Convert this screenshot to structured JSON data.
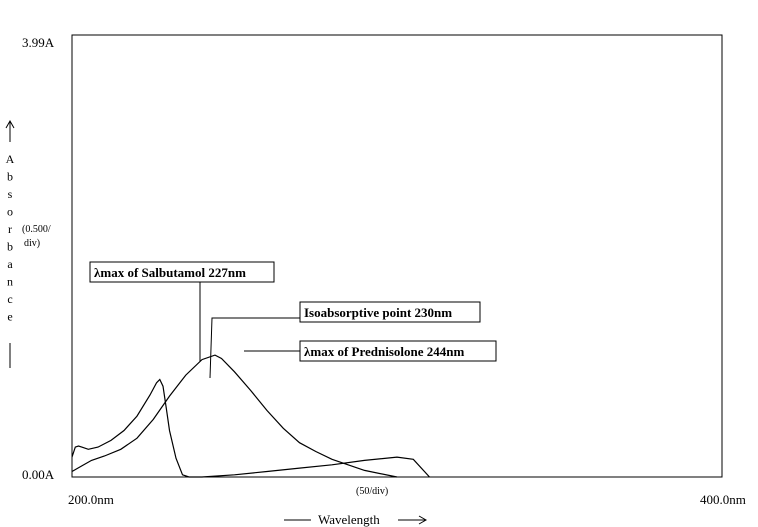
{
  "chart_data": {
    "type": "line",
    "xlim": [
      200.0,
      400.0
    ],
    "ylim": [
      0.0,
      3.99
    ],
    "x_tick_labels": [
      "200.0nm",
      "400.0nm"
    ],
    "y_tick_labels": [
      "0.00A",
      "3.99A"
    ],
    "x_scale_label": "(50/div)",
    "y_scale_label": [
      "(0.500/",
      "div)"
    ],
    "xlabel": "Wavelength",
    "ylabel": "Absorbance",
    "grid": false,
    "legend": "none",
    "series": [
      {
        "x": [
          200,
          201,
          202,
          203,
          205,
          208,
          212,
          216,
          220,
          224,
          226,
          227,
          228,
          229,
          230,
          232,
          234,
          236,
          240,
          250,
          260,
          270,
          280,
          290,
          300,
          305,
          310
        ],
        "y": [
          0.18,
          0.27,
          0.28,
          0.27,
          0.25,
          0.27,
          0.33,
          0.42,
          0.55,
          0.74,
          0.85,
          0.88,
          0.82,
          0.62,
          0.42,
          0.17,
          0.02,
          0.0,
          0.0,
          0.02,
          0.05,
          0.08,
          0.11,
          0.15,
          0.18,
          0.16,
          0.0
        ]
      },
      {
        "x": [
          200,
          203,
          206,
          210,
          215,
          220,
          225,
          230,
          235,
          240,
          244,
          246,
          250,
          255,
          260,
          265,
          270,
          275,
          280,
          290,
          300
        ],
        "y": [
          0.05,
          0.1,
          0.15,
          0.19,
          0.25,
          0.35,
          0.52,
          0.73,
          0.92,
          1.06,
          1.1,
          1.07,
          0.95,
          0.78,
          0.6,
          0.44,
          0.31,
          0.23,
          0.16,
          0.06,
          0.0
        ]
      }
    ],
    "annotations": [
      {
        "text": "λmax of Salbutamol 227nm",
        "x": 227,
        "y": 0.88
      },
      {
        "text": "Isoabsorptive point 230nm",
        "x": 230,
        "y": 0.73
      },
      {
        "text": "λmax of Prednisolone 244nm",
        "x": 244,
        "y": 1.1
      }
    ]
  }
}
